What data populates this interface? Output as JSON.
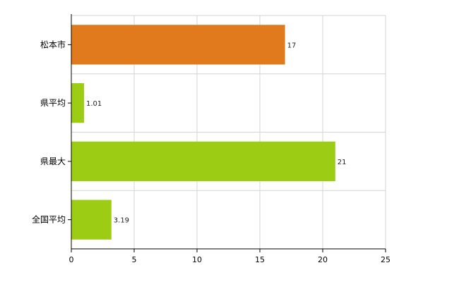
{
  "chart_data": {
    "type": "bar",
    "orientation": "horizontal",
    "categories": [
      "松本市",
      "県平均",
      "県最大",
      "全国平均"
    ],
    "values": [
      17,
      1.01,
      21,
      3.19
    ],
    "data_labels": [
      "17",
      "1.01",
      "21",
      "3.19"
    ],
    "colors": [
      "#e07a1c",
      "#9ccc14",
      "#9ccc14",
      "#9ccc14"
    ],
    "xlim": [
      0,
      25
    ],
    "xticks": [
      0,
      5,
      10,
      15,
      20,
      25
    ],
    "xtick_labels": [
      "0",
      "5",
      "10",
      "15",
      "20",
      "25"
    ],
    "title": "",
    "xlabel": "",
    "ylabel": "",
    "grid": true,
    "legend": "none"
  }
}
